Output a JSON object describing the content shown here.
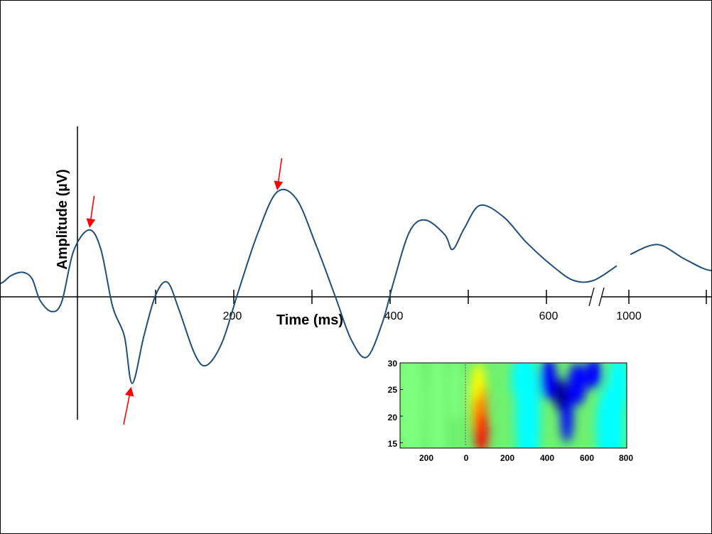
{
  "chart_data": [
    {
      "type": "line",
      "title": "",
      "xlabel": "Time (ms)",
      "ylabel": "Amplitude (µV)",
      "x_tick_labels": [
        "200",
        "400",
        "600",
        "1000"
      ],
      "axis_break": true,
      "colors": {
        "line": "#1f4e79",
        "arrow": "#ff0000"
      },
      "series": [
        {
          "points": [
            [
              -200,
              0.6
            ],
            [
              -165,
              0.9
            ],
            [
              -130,
              0.4
            ],
            [
              -100,
              0.4
            ],
            [
              -85,
              0.65
            ],
            [
              -70,
              0.75
            ],
            [
              -58,
              0.55
            ],
            [
              -48,
              -0.1
            ],
            [
              -33,
              -0.45
            ],
            [
              -20,
              -0.15
            ],
            [
              -5,
              1.4
            ],
            [
              15,
              2.05
            ],
            [
              30,
              1.45
            ],
            [
              45,
              -0.3
            ],
            [
              60,
              -1.2
            ],
            [
              70,
              -2.65
            ],
            [
              85,
              -1.2
            ],
            [
              100,
              0.05
            ],
            [
              115,
              0.45
            ],
            [
              130,
              -0.4
            ],
            [
              150,
              -1.75
            ],
            [
              165,
              -2.1
            ],
            [
              185,
              -1.4
            ],
            [
              205,
              0.1
            ],
            [
              230,
              1.9
            ],
            [
              255,
              3.2
            ],
            [
              280,
              3.0
            ],
            [
              305,
              1.6
            ],
            [
              330,
              0.0
            ],
            [
              350,
              -1.3
            ],
            [
              370,
              -1.85
            ],
            [
              390,
              -0.8
            ],
            [
              405,
              0.5
            ],
            [
              425,
              2.0
            ],
            [
              445,
              2.35
            ],
            [
              470,
              1.9
            ],
            [
              480,
              1.45
            ],
            [
              495,
              2.1
            ],
            [
              515,
              2.8
            ],
            [
              545,
              2.45
            ],
            [
              575,
              1.65
            ],
            [
              610,
              0.9
            ],
            [
              635,
              0.5
            ],
            [
              660,
              0.5
            ],
            [
              690,
              0.95
            ]
          ],
          "points_after_break": [
            [
              790,
              1.3
            ],
            [
              825,
              1.6
            ],
            [
              860,
              1.15
            ],
            [
              895,
              0.8
            ],
            [
              930,
              1.05
            ],
            [
              968,
              1.45
            ],
            [
              990,
              1.45
            ]
          ]
        }
      ],
      "annotations": [
        {
          "type": "arrow",
          "x": 15,
          "y": 2.05,
          "from": "above"
        },
        {
          "type": "arrow",
          "x": 70,
          "y": -2.65,
          "from": "below"
        },
        {
          "type": "arrow",
          "x": 255,
          "y": 3.2,
          "from": "above"
        }
      ]
    },
    {
      "type": "heatmap",
      "x_tick_labels": [
        "200",
        "0",
        "200",
        "400",
        "600",
        "800"
      ],
      "x_ticks": [
        -200,
        0,
        200,
        400,
        600,
        800
      ],
      "y_tick_labels": [
        "30",
        "25",
        "20",
        "15"
      ],
      "y_ticks": [
        30,
        25,
        20,
        15
      ],
      "xlim": [
        -300,
        800
      ],
      "ylim": [
        14,
        30
      ],
      "description_values": "relative power: red burst peaking 0-200 ms at 14-23 Hz; blue suppression 350-650 ms at 18-30 Hz; green elsewhere",
      "colormap": [
        "#00008f",
        "#0000ff",
        "#00ffff",
        "#7fff7f",
        "#ffff00",
        "#ff7f00",
        "#ff0000"
      ]
    }
  ]
}
